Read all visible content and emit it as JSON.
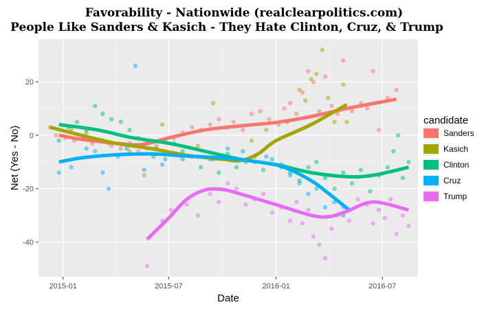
{
  "chart_data": {
    "type": "scatter",
    "title": "Favorability - Nationwide (realclearpolitics.com)",
    "subtitle": "People Like Sanders & Kasich - They Hate Clinton, Cruz, & Trump",
    "xlabel": "Date",
    "ylabel": "Net (Yes - No)",
    "xlim": [
      "2014-11-20",
      "2016-08-31"
    ],
    "ylim": [
      -53,
      36
    ],
    "x_ticks": [
      "2015-01",
      "2015-07",
      "2016-01",
      "2016-07"
    ],
    "y_ticks": [
      -40,
      -20,
      0,
      20
    ],
    "grid": true,
    "background": "#ebebeb",
    "legend": {
      "title": "candidate",
      "position": "right"
    },
    "series": [
      {
        "name": "Sanders",
        "color": "#F8766D",
        "points": [
          [
            "2014-12-20",
            0
          ],
          [
            "2015-01-05",
            -1
          ],
          [
            "2015-01-20",
            -2
          ],
          [
            "2015-02-05",
            -1
          ],
          [
            "2015-02-20",
            -3
          ],
          [
            "2015-03-10",
            -2
          ],
          [
            "2015-03-25",
            -4
          ],
          [
            "2015-04-10",
            -5
          ],
          [
            "2015-04-25",
            -3
          ],
          [
            "2015-05-10",
            -6
          ],
          [
            "2015-05-25",
            -5
          ],
          [
            "2015-06-10",
            -4
          ],
          [
            "2015-06-25",
            -2
          ],
          [
            "2015-07-10",
            -1
          ],
          [
            "2015-07-25",
            1
          ],
          [
            "2015-08-10",
            3
          ],
          [
            "2015-08-25",
            2
          ],
          [
            "2015-09-10",
            4
          ],
          [
            "2015-09-25",
            6
          ],
          [
            "2015-10-10",
            3
          ],
          [
            "2015-10-20",
            5
          ],
          [
            "2015-11-05",
            2
          ],
          [
            "2015-11-20",
            8
          ],
          [
            "2015-12-05",
            9
          ],
          [
            "2015-12-20",
            6
          ],
          [
            "2016-01-05",
            4
          ],
          [
            "2016-01-15",
            10
          ],
          [
            "2016-01-25",
            12
          ],
          [
            "2016-02-05",
            8
          ],
          [
            "2016-02-15",
            16
          ],
          [
            "2016-02-25",
            24
          ],
          [
            "2016-03-05",
            20
          ],
          [
            "2016-03-15",
            9
          ],
          [
            "2016-03-25",
            22
          ],
          [
            "2016-04-05",
            11
          ],
          [
            "2016-04-15",
            8
          ],
          [
            "2016-04-25",
            28
          ],
          [
            "2016-05-10",
            9
          ],
          [
            "2016-05-25",
            12
          ],
          [
            "2016-06-05",
            10
          ],
          [
            "2016-06-15",
            24
          ],
          [
            "2016-06-25",
            2
          ],
          [
            "2016-07-10",
            14
          ],
          [
            "2016-07-25",
            17
          ]
        ],
        "trend": [
          [
            "2014-12-25",
            0
          ],
          [
            "2015-02-01",
            -1.5
          ],
          [
            "2015-04-01",
            -3
          ],
          [
            "2015-05-15",
            -3.5
          ],
          [
            "2015-07-01",
            -1
          ],
          [
            "2015-09-01",
            2
          ],
          [
            "2015-11-01",
            3.5
          ],
          [
            "2016-01-01",
            4.8
          ],
          [
            "2016-03-01",
            7
          ],
          [
            "2016-05-01",
            10
          ],
          [
            "2016-07-25",
            13.5
          ]
        ]
      },
      {
        "name": "Kasich",
        "color": "#A3A500",
        "points": [
          [
            "2014-12-10",
            3
          ],
          [
            "2015-01-15",
            2
          ],
          [
            "2015-02-10",
            1
          ],
          [
            "2015-03-20",
            -3
          ],
          [
            "2015-04-25",
            -6
          ],
          [
            "2015-05-20",
            -15
          ],
          [
            "2015-06-20",
            4
          ],
          [
            "2015-07-10",
            -7
          ],
          [
            "2015-08-20",
            -4
          ],
          [
            "2015-09-15",
            12
          ],
          [
            "2015-10-15",
            -9
          ],
          [
            "2015-11-20",
            -2
          ],
          [
            "2015-12-15",
            2
          ],
          [
            "2016-01-20",
            5
          ],
          [
            "2016-02-10",
            17
          ],
          [
            "2016-02-20",
            13
          ],
          [
            "2016-03-01",
            21
          ],
          [
            "2016-03-10",
            23
          ],
          [
            "2016-03-20",
            32
          ],
          [
            "2016-03-30",
            14
          ],
          [
            "2016-04-10",
            5
          ],
          [
            "2016-04-20",
            10
          ],
          [
            "2016-04-25",
            19
          ],
          [
            "2016-05-01",
            5
          ]
        ],
        "trend": [
          [
            "2014-12-10",
            3
          ],
          [
            "2015-02-01",
            0
          ],
          [
            "2015-04-01",
            -3
          ],
          [
            "2015-06-01",
            -5
          ],
          [
            "2015-08-01",
            -7.5
          ],
          [
            "2015-10-01",
            -9
          ],
          [
            "2015-11-01",
            -9.5
          ],
          [
            "2015-12-01",
            -7
          ],
          [
            "2016-01-01",
            -2
          ],
          [
            "2016-03-01",
            4
          ],
          [
            "2016-05-01",
            11.5
          ]
        ]
      },
      {
        "name": "Clinton",
        "color": "#00BF7D",
        "points": [
          [
            "2014-12-25",
            -2
          ],
          [
            "2015-01-10",
            3
          ],
          [
            "2015-01-25",
            5
          ],
          [
            "2015-02-10",
            2
          ],
          [
            "2015-02-25",
            11
          ],
          [
            "2015-03-10",
            8
          ],
          [
            "2015-03-25",
            6
          ],
          [
            "2015-04-10",
            5
          ],
          [
            "2015-04-25",
            2
          ],
          [
            "2015-05-10",
            -1
          ],
          [
            "2015-05-25",
            -3
          ],
          [
            "2015-06-10",
            -5
          ],
          [
            "2015-06-25",
            -9
          ],
          [
            "2015-07-10",
            -3
          ],
          [
            "2015-07-25",
            -6
          ],
          [
            "2015-08-10",
            -8
          ],
          [
            "2015-08-25",
            -12
          ],
          [
            "2015-09-10",
            -9
          ],
          [
            "2015-09-25",
            -14
          ],
          [
            "2015-10-10",
            -7
          ],
          [
            "2015-10-25",
            -12
          ],
          [
            "2015-11-10",
            -10
          ],
          [
            "2015-11-25",
            -8
          ],
          [
            "2015-12-10",
            -13
          ],
          [
            "2015-12-25",
            -9
          ],
          [
            "2016-01-10",
            -11
          ],
          [
            "2016-01-25",
            -14
          ],
          [
            "2016-02-10",
            -17
          ],
          [
            "2016-02-25",
            -12
          ],
          [
            "2016-03-10",
            -10
          ],
          [
            "2016-03-25",
            -16
          ],
          [
            "2016-04-10",
            -20
          ],
          [
            "2016-04-25",
            -14
          ],
          [
            "2016-05-10",
            -18
          ],
          [
            "2016-05-25",
            -13
          ],
          [
            "2016-06-10",
            -21
          ],
          [
            "2016-06-25",
            -15
          ],
          [
            "2016-07-10",
            -12
          ],
          [
            "2016-07-20",
            -6
          ],
          [
            "2016-07-28",
            0
          ],
          [
            "2016-08-05",
            -16
          ],
          [
            "2016-08-15",
            -10
          ]
        ],
        "trend": [
          [
            "2014-12-25",
            4
          ],
          [
            "2015-03-01",
            2
          ],
          [
            "2015-05-01",
            -1
          ],
          [
            "2015-07-01",
            -3
          ],
          [
            "2015-09-01",
            -6
          ],
          [
            "2015-11-01",
            -9
          ],
          [
            "2016-01-01",
            -11
          ],
          [
            "2016-03-01",
            -14
          ],
          [
            "2016-05-01",
            -15.5
          ],
          [
            "2016-06-15",
            -15
          ],
          [
            "2016-08-15",
            -12
          ]
        ]
      },
      {
        "name": "Cruz",
        "color": "#00B0F6",
        "points": [
          [
            "2014-12-25",
            -14
          ],
          [
            "2015-01-15",
            -12
          ],
          [
            "2015-02-10",
            -5
          ],
          [
            "2015-02-25",
            -6
          ],
          [
            "2015-03-10",
            -14
          ],
          [
            "2015-03-20",
            -20
          ],
          [
            "2015-04-05",
            -8
          ],
          [
            "2015-04-20",
            -5
          ],
          [
            "2015-05-05",
            26
          ],
          [
            "2015-05-20",
            -13
          ],
          [
            "2015-06-05",
            -8
          ],
          [
            "2015-06-20",
            -11
          ],
          [
            "2015-07-05",
            -7
          ],
          [
            "2015-07-25",
            -9
          ],
          [
            "2015-08-20",
            -8
          ],
          [
            "2015-09-15",
            -9
          ],
          [
            "2015-10-10",
            -5
          ],
          [
            "2015-11-05",
            -6
          ],
          [
            "2015-11-25",
            -10
          ],
          [
            "2015-12-15",
            -8
          ],
          [
            "2016-01-10",
            -12
          ],
          [
            "2016-01-25",
            -15
          ],
          [
            "2016-02-10",
            -18
          ],
          [
            "2016-02-25",
            -22
          ],
          [
            "2016-03-10",
            -20
          ],
          [
            "2016-03-25",
            -27
          ],
          [
            "2016-04-10",
            -25
          ],
          [
            "2016-04-25",
            -30
          ],
          [
            "2016-05-05",
            -28
          ]
        ],
        "trend": [
          [
            "2014-12-25",
            -10
          ],
          [
            "2015-02-01",
            -8.5
          ],
          [
            "2015-04-01",
            -7.3
          ],
          [
            "2015-06-01",
            -7
          ],
          [
            "2015-08-01",
            -7.8
          ],
          [
            "2015-10-01",
            -8.5
          ],
          [
            "2015-12-01",
            -10
          ],
          [
            "2016-01-15",
            -12
          ],
          [
            "2016-03-01",
            -17
          ],
          [
            "2016-04-01",
            -22
          ],
          [
            "2016-05-05",
            -28
          ]
        ]
      },
      {
        "name": "Trump",
        "color": "#E76BF3",
        "points": [
          [
            "2015-05-25",
            -49
          ],
          [
            "2015-06-20",
            -32
          ],
          [
            "2015-07-05",
            -28
          ],
          [
            "2015-08-01",
            -26
          ],
          [
            "2015-08-20",
            -30
          ],
          [
            "2015-09-10",
            -22
          ],
          [
            "2015-09-25",
            -25
          ],
          [
            "2015-10-10",
            -18
          ],
          [
            "2015-10-25",
            -20
          ],
          [
            "2015-11-10",
            -26
          ],
          [
            "2015-11-25",
            -24
          ],
          [
            "2015-12-10",
            -22
          ],
          [
            "2015-12-25",
            -29
          ],
          [
            "2016-01-10",
            -27
          ],
          [
            "2016-01-25",
            -32
          ],
          [
            "2016-02-05",
            -25
          ],
          [
            "2016-02-15",
            -33
          ],
          [
            "2016-02-25",
            -28
          ],
          [
            "2016-03-05",
            -38
          ],
          [
            "2016-03-15",
            -41
          ],
          [
            "2016-03-25",
            -46
          ],
          [
            "2016-04-05",
            -35
          ],
          [
            "2016-04-15",
            -30
          ],
          [
            "2016-04-25",
            -27
          ],
          [
            "2016-05-05",
            -32
          ],
          [
            "2016-05-20",
            -24
          ],
          [
            "2016-06-05",
            -26
          ],
          [
            "2016-06-15",
            -33
          ],
          [
            "2016-06-25",
            -28
          ],
          [
            "2016-07-05",
            -31
          ],
          [
            "2016-07-15",
            -24
          ],
          [
            "2016-07-25",
            -37
          ],
          [
            "2016-08-05",
            -30
          ],
          [
            "2016-08-15",
            -34
          ]
        ],
        "trend": [
          [
            "2015-05-25",
            -39
          ],
          [
            "2015-07-01",
            -31
          ],
          [
            "2015-08-01",
            -24
          ],
          [
            "2015-09-01",
            -20.5
          ],
          [
            "2015-10-01",
            -20.3
          ],
          [
            "2015-11-01",
            -22
          ],
          [
            "2016-01-01",
            -26
          ],
          [
            "2016-03-01",
            -30
          ],
          [
            "2016-04-01",
            -30.5
          ],
          [
            "2016-05-01",
            -28.5
          ],
          [
            "2016-06-15",
            -25
          ],
          [
            "2016-08-15",
            -28
          ]
        ]
      }
    ]
  }
}
